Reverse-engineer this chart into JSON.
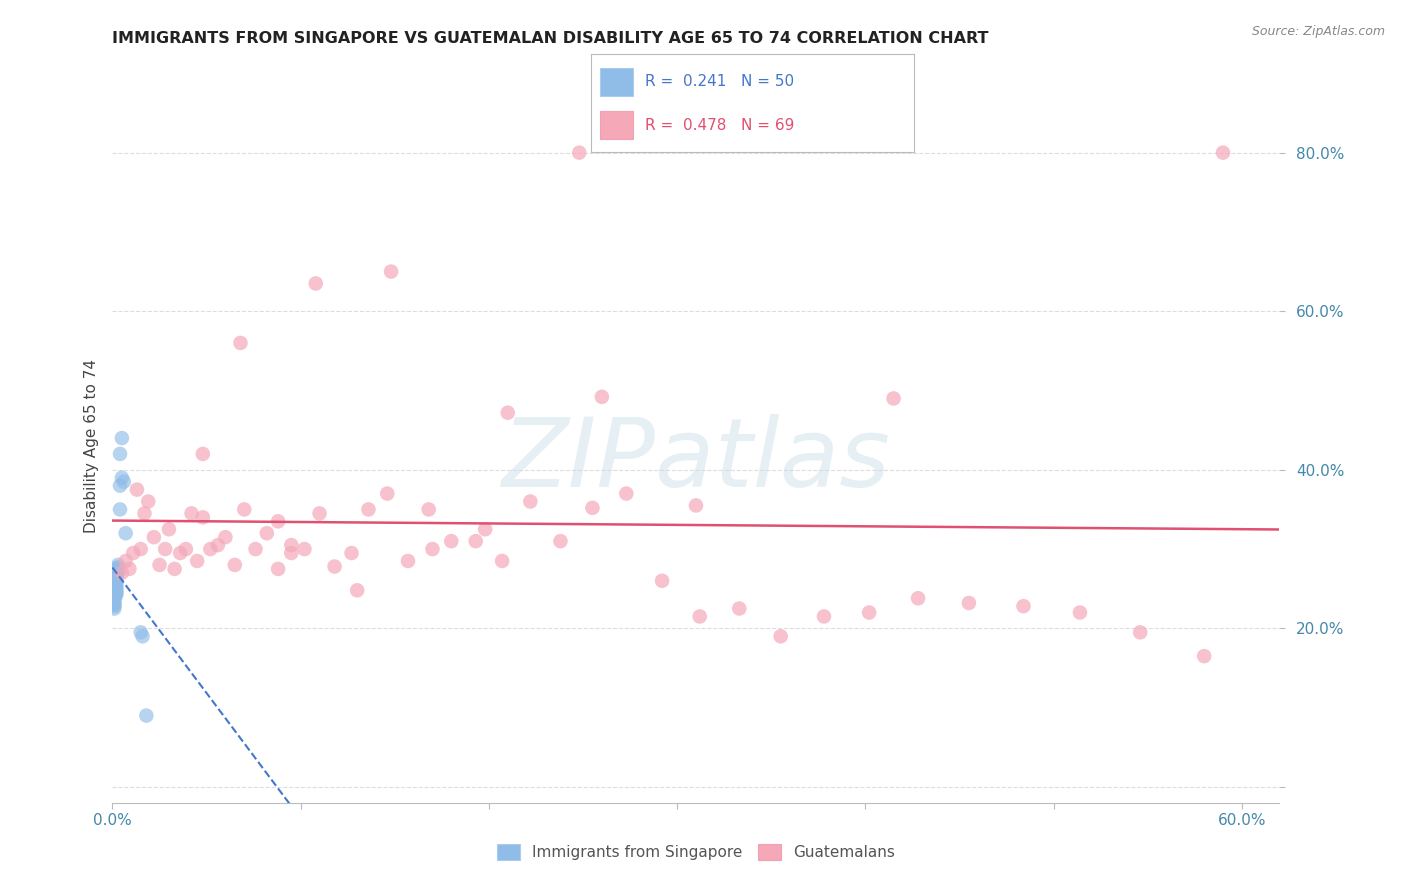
{
  "title": "IMMIGRANTS FROM SINGAPORE VS GUATEMALAN DISABILITY AGE 65 TO 74 CORRELATION CHART",
  "source": "Source: ZipAtlas.com",
  "ylabel": "Disability Age 65 to 74",
  "xlim": [
    0.0,
    0.62
  ],
  "ylim": [
    -0.02,
    0.88
  ],
  "watermark": "ZIPatlas",
  "singapore_color": "#90bce8",
  "guatemalan_color": "#f4a8b8",
  "singapore_trend_color": "#4477cc",
  "guatemalan_trend_color": "#e05070",
  "sg_R": "0.241",
  "sg_N": "50",
  "gt_R": "0.478",
  "gt_N": "69",
  "singapore_x": [
    0.001,
    0.001,
    0.001,
    0.001,
    0.001,
    0.001,
    0.001,
    0.001,
    0.001,
    0.001,
    0.001,
    0.001,
    0.001,
    0.001,
    0.001,
    0.001,
    0.001,
    0.001,
    0.001,
    0.001,
    0.002,
    0.002,
    0.002,
    0.002,
    0.002,
    0.002,
    0.002,
    0.002,
    0.002,
    0.002,
    0.002,
    0.002,
    0.002,
    0.002,
    0.002,
    0.003,
    0.003,
    0.003,
    0.003,
    0.003,
    0.004,
    0.004,
    0.004,
    0.005,
    0.005,
    0.006,
    0.007,
    0.015,
    0.016,
    0.018
  ],
  "singapore_y": [
    0.27,
    0.268,
    0.265,
    0.263,
    0.26,
    0.258,
    0.256,
    0.254,
    0.252,
    0.25,
    0.248,
    0.246,
    0.243,
    0.24,
    0.238,
    0.235,
    0.232,
    0.23,
    0.228,
    0.225,
    0.275,
    0.273,
    0.27,
    0.268,
    0.265,
    0.263,
    0.26,
    0.258,
    0.255,
    0.252,
    0.25,
    0.248,
    0.246,
    0.244,
    0.242,
    0.28,
    0.277,
    0.275,
    0.272,
    0.27,
    0.42,
    0.38,
    0.35,
    0.44,
    0.39,
    0.385,
    0.32,
    0.195,
    0.19,
    0.09
  ],
  "guatemalan_x": [
    0.005,
    0.007,
    0.009,
    0.011,
    0.013,
    0.015,
    0.017,
    0.019,
    0.022,
    0.025,
    0.028,
    0.03,
    0.033,
    0.036,
    0.039,
    0.042,
    0.045,
    0.048,
    0.052,
    0.056,
    0.06,
    0.065,
    0.07,
    0.076,
    0.082,
    0.088,
    0.095,
    0.102,
    0.11,
    0.118,
    0.127,
    0.136,
    0.146,
    0.157,
    0.168,
    0.18,
    0.193,
    0.207,
    0.222,
    0.238,
    0.255,
    0.273,
    0.292,
    0.312,
    0.333,
    0.355,
    0.378,
    0.402,
    0.428,
    0.455,
    0.484,
    0.514,
    0.546,
    0.58,
    0.095,
    0.13,
    0.17,
    0.21,
    0.26,
    0.31,
    0.048,
    0.068,
    0.088,
    0.108,
    0.148,
    0.198,
    0.248,
    0.59,
    0.415
  ],
  "guatemalan_y": [
    0.27,
    0.285,
    0.275,
    0.295,
    0.375,
    0.3,
    0.345,
    0.36,
    0.315,
    0.28,
    0.3,
    0.325,
    0.275,
    0.295,
    0.3,
    0.345,
    0.285,
    0.42,
    0.3,
    0.305,
    0.315,
    0.28,
    0.35,
    0.3,
    0.32,
    0.275,
    0.295,
    0.3,
    0.345,
    0.278,
    0.295,
    0.35,
    0.37,
    0.285,
    0.35,
    0.31,
    0.31,
    0.285,
    0.36,
    0.31,
    0.352,
    0.37,
    0.26,
    0.215,
    0.225,
    0.19,
    0.215,
    0.22,
    0.238,
    0.232,
    0.228,
    0.22,
    0.195,
    0.165,
    0.305,
    0.248,
    0.3,
    0.472,
    0.492,
    0.355,
    0.34,
    0.56,
    0.335,
    0.635,
    0.65,
    0.325,
    0.8,
    0.8,
    0.49
  ],
  "background_color": "#ffffff",
  "grid_color": "#dddddd"
}
